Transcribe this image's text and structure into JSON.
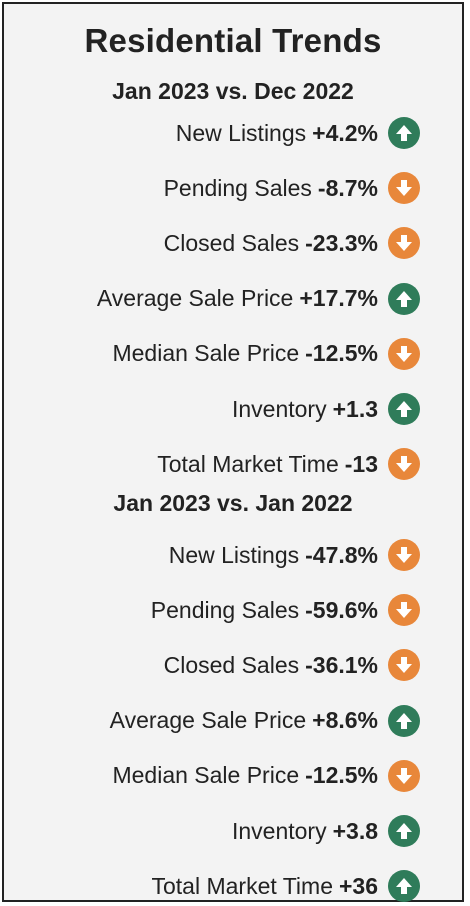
{
  "title": "Residential Trends",
  "colors": {
    "up": "#2f7c5a",
    "down": "#e8873a"
  },
  "sections": [
    {
      "heading": "Jan 2023 vs. Dec 2022",
      "rows": [
        {
          "label": "New Listings",
          "value": "+4.2%",
          "direction": "up"
        },
        {
          "label": "Pending Sales",
          "value": "-8.7%",
          "direction": "down"
        },
        {
          "label": "Closed Sales",
          "value": "-23.3%",
          "direction": "down"
        },
        {
          "label": "Average Sale Price",
          "value": "+17.7%",
          "direction": "up"
        },
        {
          "label": "Median Sale Price",
          "value": "-12.5%",
          "direction": "down"
        },
        {
          "label": "Inventory",
          "value": "+1.3",
          "direction": "up"
        },
        {
          "label": "Total Market Time",
          "value": "-13",
          "direction": "down"
        }
      ]
    },
    {
      "heading": "Jan 2023 vs. Jan 2022",
      "rows": [
        {
          "label": "New Listings",
          "value": "-47.8%",
          "direction": "down"
        },
        {
          "label": "Pending Sales",
          "value": "-59.6%",
          "direction": "down"
        },
        {
          "label": "Closed Sales",
          "value": "-36.1%",
          "direction": "down"
        },
        {
          "label": "Average Sale Price",
          "value": "+8.6%",
          "direction": "up"
        },
        {
          "label": "Median Sale Price",
          "value": "-12.5%",
          "direction": "down"
        },
        {
          "label": "Inventory",
          "value": "+3.8",
          "direction": "up"
        },
        {
          "label": "Total Market Time",
          "value": "+36",
          "direction": "up"
        }
      ]
    }
  ]
}
